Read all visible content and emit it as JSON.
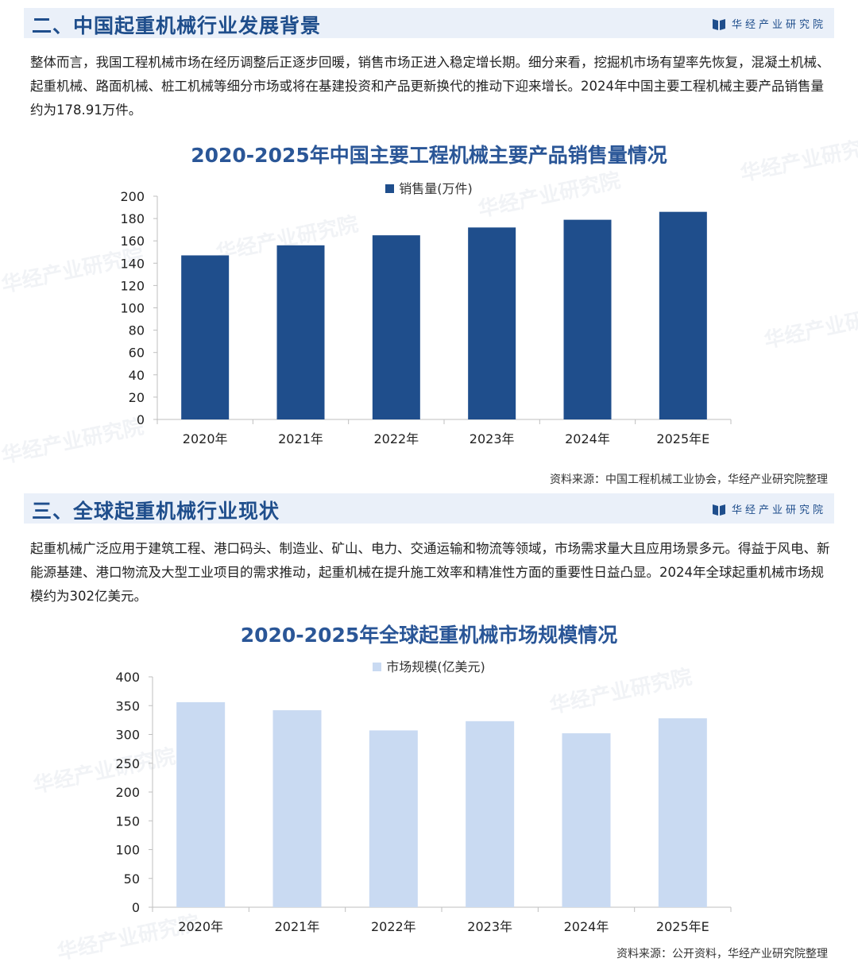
{
  "brand": "华经产业研究院",
  "section1": {
    "title": "二、中国起重机械行业发展背景",
    "paragraph": "整体而言，我国工程机械市场在经历调整后正逐步回暖，销售市场正进入稳定增长期。细分来看，挖掘机市场有望率先恢复，混凝土机械、起重机械、路面机械、桩工机械等细分市场或将在基建投资和产品更新换代的推动下迎来增长。2024年中国主要工程机械主要产品销售量约为178.91万件。",
    "source": "资料来源：中国工程机械工业协会，华经产业研究院整理"
  },
  "section2": {
    "title": "三、全球起重机械行业现状",
    "paragraph": "起重机械广泛应用于建筑工程、港口码头、制造业、矿山、电力、交通运输和物流等领域，市场需求量大且应用场景多元。得益于风电、新能源基建、港口物流及大型工业项目的需求推动，起重机械在提升施工效率和精准性方面的重要性日益凸显。2024年全球起重机械市场规模约为302亿美元。",
    "source": "资料来源：公开资料，华经产业研究院整理"
  },
  "watermark": "华经产业研究院",
  "colors": {
    "chart1_bar": "#1f4e8c",
    "chart2_bar": "#c9daf2",
    "header_bg": "#eaf0f9",
    "title": "#1f4e8c"
  },
  "chart_data": [
    {
      "type": "bar",
      "title": "2020-2025年中国主要工程机械主要产品销售量情况",
      "legend": "top-center",
      "series": [
        {
          "name": "销售量(万件)",
          "values": [
            147,
            156,
            165,
            172,
            178.91,
            186
          ]
        }
      ],
      "categories": [
        "2020年",
        "2021年",
        "2022年",
        "2023年",
        "2024年",
        "2025年E"
      ],
      "ylim": [
        0,
        200
      ],
      "yticks": [
        0,
        20,
        40,
        60,
        80,
        100,
        120,
        140,
        160,
        180,
        200
      ]
    },
    {
      "type": "bar",
      "title": "2020-2025年全球起重机械市场规模情况",
      "legend": "top-center",
      "series": [
        {
          "name": "市场规模(亿美元)",
          "values": [
            356,
            342,
            307,
            323,
            302,
            328
          ]
        }
      ],
      "categories": [
        "2020年",
        "2021年",
        "2022年",
        "2023年",
        "2024年",
        "2025年E"
      ],
      "ylim": [
        0,
        400
      ],
      "yticks": [
        0,
        50,
        100,
        150,
        200,
        250,
        300,
        350,
        400
      ]
    }
  ]
}
